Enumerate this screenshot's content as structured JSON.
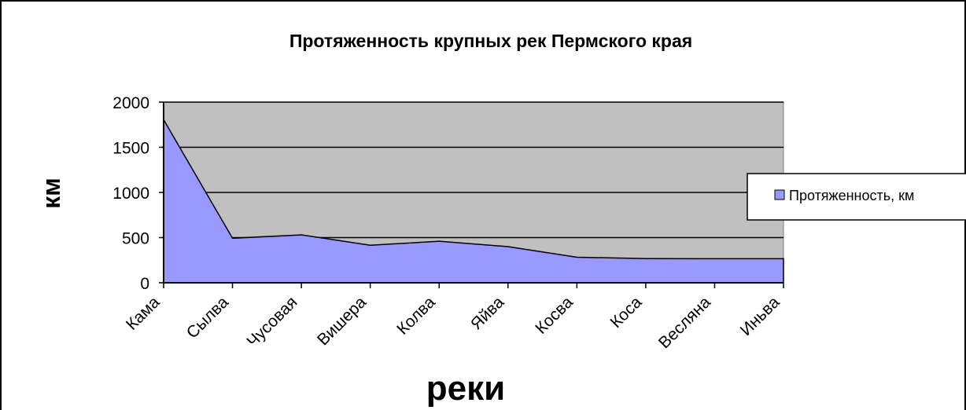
{
  "chart_data": {
    "type": "area",
    "title": "Протяженность крупных рек Пермского края",
    "xlabel": "реки",
    "ylabel": "км",
    "categories": [
      "Кама",
      "Сылва",
      "Чусовая",
      "Вишера",
      "Колва",
      "Яйва",
      "Косва",
      "Коса",
      "Весляна",
      "Иньва"
    ],
    "series": [
      {
        "name": "Протяженность, км",
        "values": [
          1805,
          493,
          530,
          415,
          460,
          400,
          283,
          267,
          266,
          266
        ]
      }
    ],
    "ylim": [
      0,
      2000
    ],
    "yticks": [
      "0",
      "500",
      "1000",
      "1500",
      "2000"
    ],
    "grid": true,
    "legend": "right",
    "colors": {
      "plot_background": "#c0c0c0",
      "series_fill": "#9999ff",
      "line": "#000000",
      "frame": "#000000"
    }
  }
}
